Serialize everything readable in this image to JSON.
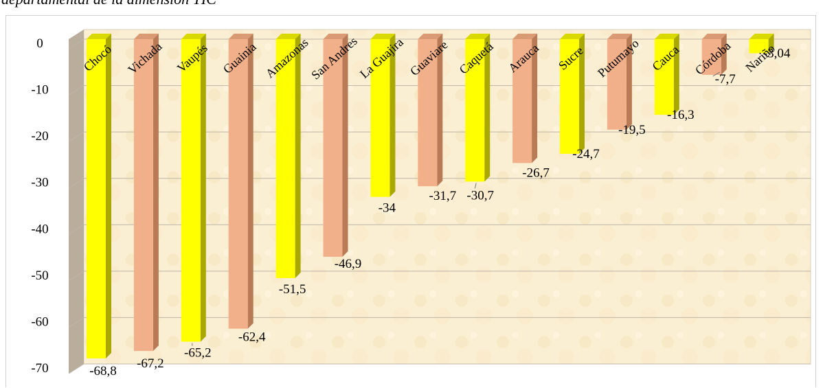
{
  "caption": {
    "text": "departamental de la dimensión TIC"
  },
  "colors": {
    "yellow_front": "#FFFF00",
    "yellow_side": "#A8A800",
    "yellow_top": "#D9D900",
    "salmon_front": "#F2B08A",
    "salmon_side": "#B97A56",
    "salmon_top": "#D99A74",
    "wall": "#FBEFD3",
    "floor_wall": "#B9AE9C",
    "grid": "#BDB6A8"
  },
  "chart_data": {
    "type": "bar",
    "title": "",
    "xlabel": "",
    "ylabel": "",
    "ylim": [
      -70,
      0
    ],
    "yticks": [
      0,
      -10,
      -20,
      -30,
      -40,
      -50,
      -60,
      -70
    ],
    "grid": true,
    "legend": "none",
    "categories": [
      "Chocó",
      "Vichada",
      "Vaupés",
      "Guainia",
      "Amazonas",
      "San Andres",
      "La Guajira",
      "Guaviare",
      "Caquetá",
      "Arauca",
      "Sucre",
      "Putumayo",
      "Cauca",
      "Córdoba",
      "Nariño"
    ],
    "values": [
      -68.8,
      -67.2,
      -65.2,
      -62.4,
      -51.5,
      -46.9,
      -34,
      -31.7,
      -30.7,
      -26.7,
      -24.7,
      -19.5,
      -16.3,
      -7.7,
      -3.04
    ],
    "value_labels": [
      "-68,8",
      "-67,2",
      "-65,2",
      "-62,4",
      "-51,5",
      "-46,9",
      "-34",
      "-31,7",
      "-30,7",
      "-26,7",
      "-24,7",
      "-19,5",
      "-16,3",
      "-7,7",
      "-3,04"
    ],
    "bar_colors": [
      "yellow",
      "salmon",
      "yellow",
      "salmon",
      "yellow",
      "salmon",
      "yellow",
      "salmon",
      "yellow",
      "salmon",
      "yellow",
      "salmon",
      "yellow",
      "salmon",
      "yellow"
    ]
  }
}
